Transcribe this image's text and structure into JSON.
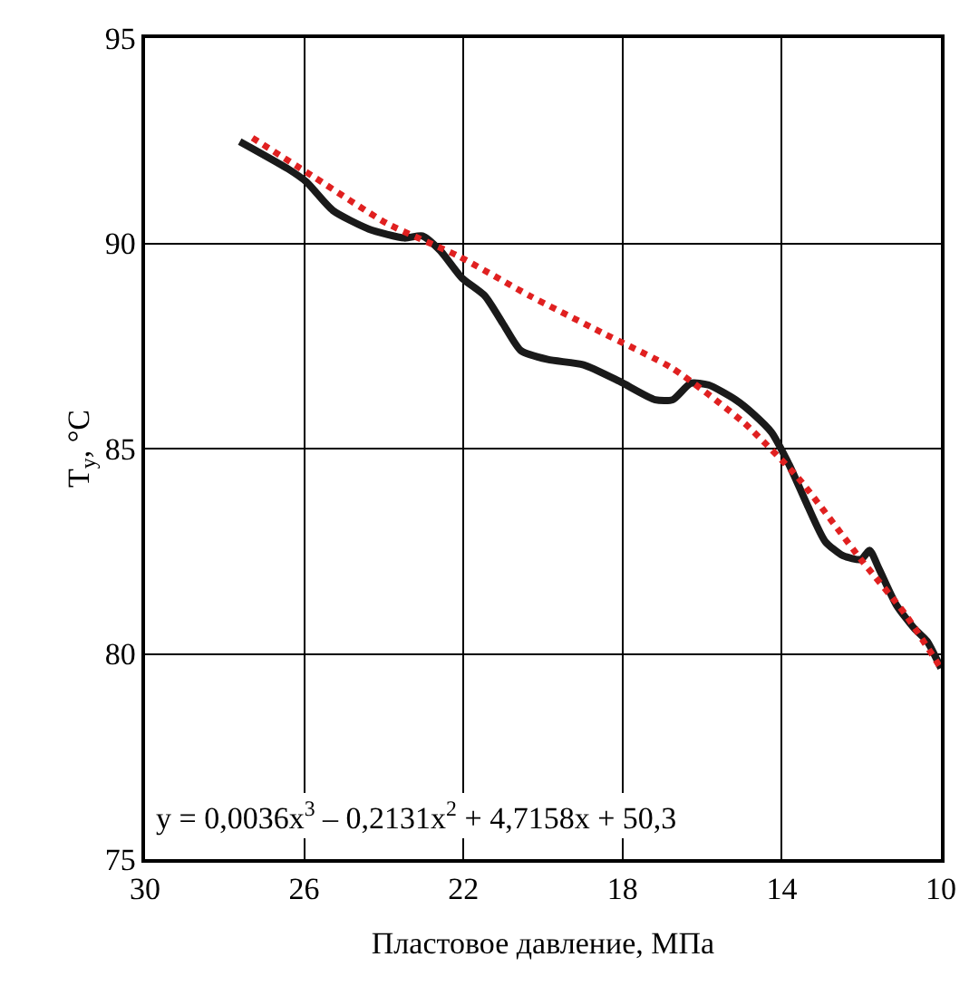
{
  "chart_data": {
    "type": "line",
    "xlabel": "Пластовое давление, МПа",
    "ylabel": "T$_{у}$, °C",
    "xlim": [
      30,
      10
    ],
    "xticks": [
      30,
      26,
      22,
      18,
      14,
      10
    ],
    "ylim": [
      75,
      95
    ],
    "yticks": [
      75,
      80,
      85,
      90,
      95
    ],
    "grid": true,
    "legend": false,
    "marker": "none",
    "series": [
      {
        "color": "#1a1a1a",
        "line_style": "solid",
        "x": [
          27.62,
          26.4,
          25.95,
          25.28,
          24.38,
          23.48,
          23.03,
          22.58,
          22.04,
          21.46,
          21.01,
          20.56,
          19.88,
          18.98,
          18.08,
          17.18,
          16.74,
          16.29,
          15.84,
          15.16,
          14.71,
          14.26,
          13.81,
          13.36,
          12.91,
          12.46,
          12.01,
          11.79,
          11.56,
          11.12,
          10.67,
          10.35,
          10.0
        ],
        "values": [
          92.48,
          91.81,
          91.5,
          90.8,
          90.35,
          90.13,
          90.18,
          89.82,
          89.16,
          88.72,
          88.05,
          87.39,
          87.17,
          87.04,
          86.64,
          86.19,
          86.19,
          86.59,
          86.55,
          86.19,
          85.84,
          85.4,
          84.6,
          83.63,
          82.74,
          82.39,
          82.3,
          82.52,
          82.08,
          81.19,
          80.62,
          80.31,
          79.65
        ]
      },
      {
        "color": "#e02020",
        "line_style": "dotted",
        "x": [
          27.3,
          25.73,
          23.93,
          22.13,
          20.33,
          18.53,
          16.74,
          14.94,
          13.59,
          12.01,
          10.9,
          10.0
        ],
        "values": [
          92.57,
          91.6,
          90.49,
          89.69,
          88.72,
          87.83,
          86.95,
          85.62,
          84.29,
          82.3,
          80.97,
          79.65
        ]
      }
    ],
    "annotations": [
      "y = 0,0036x$^{3}$ – 0,2131x$^{2}$ + 4,7158x + 50,3"
    ]
  }
}
